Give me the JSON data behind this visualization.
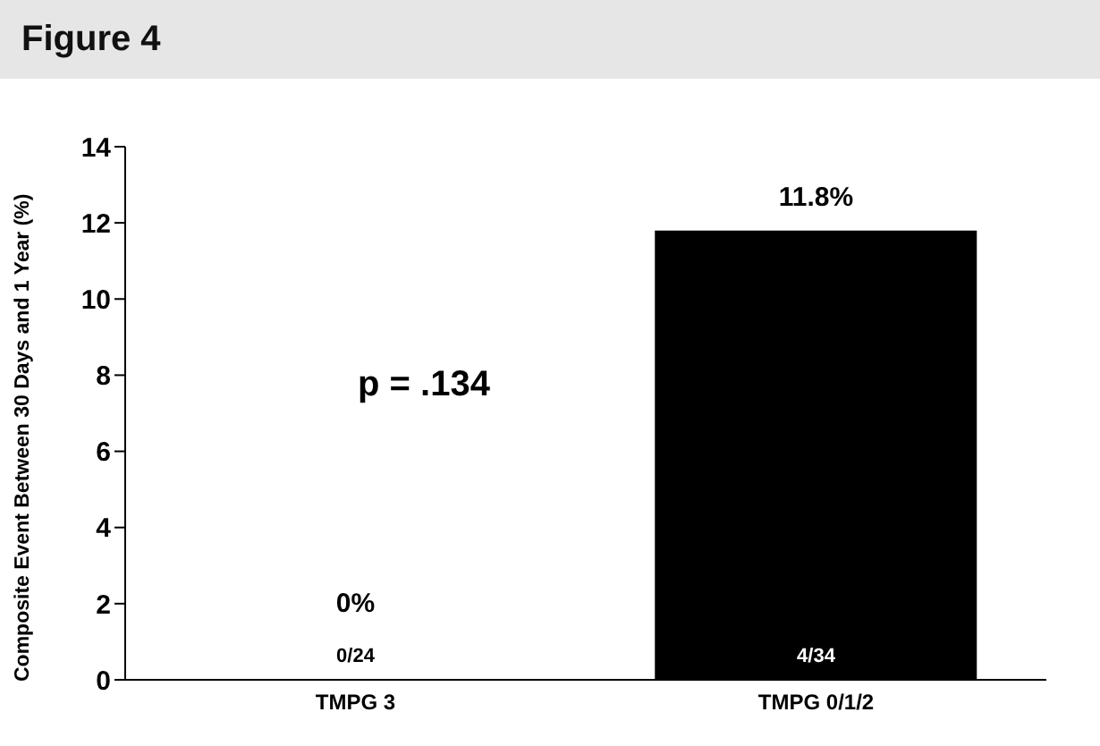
{
  "chart_data": {
    "type": "bar",
    "title": "Figure 4",
    "ylabel": "Composite Event Between 30 Days and 1 Year (%)",
    "categories": [
      "TMPG 3",
      "TMPG 0/1/2"
    ],
    "values": [
      0,
      11.8
    ],
    "color": "#000000",
    "ylim": [
      0,
      14
    ],
    "yticks": [
      0,
      2,
      4,
      6,
      8,
      10,
      12,
      14
    ],
    "grid": false,
    "legend": false,
    "value_labels": [
      "0%",
      "11.8%"
    ],
    "annotations": [
      "p = .134",
      "0/24",
      "4/34"
    ]
  }
}
